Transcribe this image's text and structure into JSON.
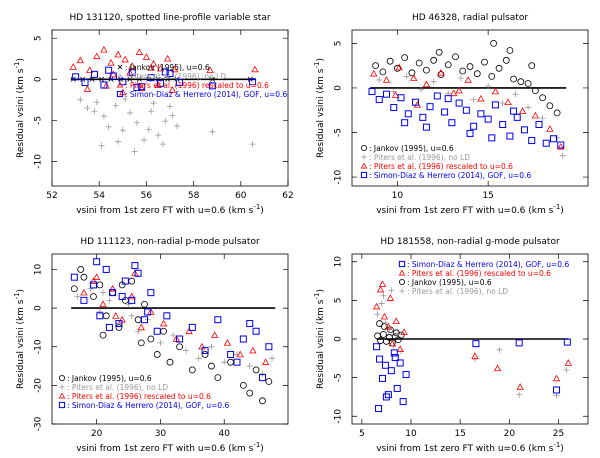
{
  "colors": {
    "jankov": "#000000",
    "pitersNoLD": "#999999",
    "pitersRescaled": "#ff0000",
    "simonDiaz": "#0000ee"
  },
  "chart_data": [
    {
      "type": "scatter",
      "title": "HD 131120, spotted line-profile variable star",
      "xlabel": "vsini from 1st zero FT with u=0.6",
      "xlabel_unit": "(km s",
      "xlabel_sup": "-1",
      "ylabel": "Residual vsini",
      "ylabel_unit": "(km s",
      "ylabel_sup": "-1",
      "xlim": [
        52,
        62
      ],
      "ylim": [
        -13,
        6
      ],
      "xticks": [
        52,
        54,
        56,
        58,
        60,
        62
      ],
      "yticks": [
        -10,
        -5,
        0,
        5
      ],
      "legend_pos": "middle-right",
      "legend": [
        {
          "marker": "x",
          "label": ": Jankov (1995), u=0.6"
        },
        {
          "marker": "plus",
          "label": ": Piters et al. (1996), no LD"
        },
        {
          "marker": "triangle",
          "label": ": Piters et al. (1996) rescaled to u=0.6"
        },
        {
          "marker": "square",
          "label": ": Simon-Diaz & Herrero (2014), GOF, u=0.6"
        }
      ],
      "zero_line": [
        52.8,
        60.6
      ],
      "series": [
        {
          "name": "Jankov (1995), u=0.6",
          "marker": "x",
          "x": [
            52.9,
            53.3,
            53.7,
            54.1,
            54.5,
            54.9,
            55.3,
            55.7,
            56.1,
            56.5,
            56.9,
            57.3,
            58.8,
            60.4
          ],
          "y": [
            0,
            0,
            0,
            0,
            0,
            0,
            0,
            0,
            0,
            0,
            0,
            0,
            0,
            0
          ]
        },
        {
          "name": "Piters et al. (1996), no LD",
          "marker": "plus",
          "x": [
            53.2,
            53.5,
            53.9,
            54.2,
            54.4,
            54.7,
            55.0,
            55.3,
            55.6,
            55.9,
            56.2,
            56.5,
            56.8,
            57.1,
            54.1,
            54.8,
            55.5,
            56.1,
            56.7,
            57.3,
            53.8,
            55.1,
            56.3,
            57.0,
            58.8,
            60.5
          ],
          "y": [
            -2.5,
            -3.5,
            -2.8,
            -4.5,
            -5.8,
            -3.2,
            -6.2,
            -4.1,
            -5.3,
            -7.4,
            -3.9,
            -6.8,
            -5.1,
            -4.4,
            -8.1,
            -7.6,
            -8.8,
            -6.1,
            -7.9,
            -5.7,
            -3.9,
            -2.4,
            -2.9,
            -3.3,
            -6.4,
            -7.9
          ]
        },
        {
          "name": "Piters et al. (1996) rescaled to u=0.6",
          "marker": "triangle",
          "x": [
            52.9,
            53.2,
            53.6,
            53.9,
            54.2,
            54.5,
            54.8,
            55.1,
            55.4,
            55.7,
            56.0,
            56.3,
            56.6,
            56.9,
            57.2,
            53.5,
            54.3,
            55.0,
            55.8,
            56.5,
            57.1,
            54.6,
            55.3,
            56.2,
            58.7,
            60.6
          ],
          "y": [
            1.5,
            2.3,
            1.1,
            2.8,
            3.6,
            2.0,
            3.0,
            2.4,
            1.6,
            3.3,
            2.7,
            1.9,
            1.3,
            2.5,
            1.2,
            -1.2,
            -0.8,
            -1.6,
            -1.1,
            -0.7,
            -1.3,
            0.6,
            0.8,
            1.4,
            1.1,
            1.2
          ]
        },
        {
          "name": "Simon-Diaz & Herrero (2014), GOF, u=0.6",
          "marker": "square",
          "x": [
            53.0,
            53.4,
            53.8,
            54.2,
            54.6,
            55.0,
            55.4,
            55.8,
            56.2,
            56.6,
            57.0,
            57.4,
            54.4,
            55.6,
            56.8,
            58.8,
            60.5
          ],
          "y": [
            0.3,
            -0.4,
            0.6,
            -0.7,
            0.4,
            -0.3,
            0.8,
            -0.9,
            0.2,
            -0.5,
            0.7,
            -0.4,
            1.1,
            -1.0,
            0.9,
            -0.8,
            -0.3
          ]
        }
      ]
    },
    {
      "type": "scatter",
      "title": "HD 46328, radial pulsator",
      "xlabel": "vsini from 1st zero FT with u=0.6",
      "xlabel_unit": "(km s",
      "xlabel_sup": "-1",
      "ylabel": "Residual vsini",
      "ylabel_unit": "(km s",
      "ylabel_sup": "-1",
      "xlim": [
        7.5,
        20.5
      ],
      "ylim": [
        -11,
        6.5
      ],
      "xticks": [
        10,
        15
      ],
      "yticks": [
        -10,
        -5,
        0,
        5
      ],
      "legend_pos": "bottom-left",
      "legend": [
        {
          "marker": "circle",
          "label": ": Jankov (1995), u=0.6"
        },
        {
          "marker": "plus",
          "label": ": Piters et al. (1996), no LD"
        },
        {
          "marker": "triangle",
          "label": ": Piters et al. (1996) rescaled to u=0.6"
        },
        {
          "marker": "square",
          "label": ": Simon-Diaz & Herrero (2014), GOF, u=0.6"
        }
      ],
      "zero_line": [
        8.5,
        19.3
      ],
      "series": [
        {
          "name": "Jankov (1995), u=0.6",
          "marker": "circle",
          "x": [
            8.8,
            9.2,
            9.6,
            10.0,
            10.4,
            10.8,
            11.2,
            11.6,
            12.0,
            12.4,
            12.8,
            13.2,
            13.6,
            14.0,
            14.4,
            14.8,
            15.2,
            15.6,
            16.0,
            16.4,
            16.8,
            17.2,
            17.6,
            18.0,
            18.4,
            18.8,
            15.3,
            12.3,
            16.2,
            17.4
          ],
          "y": [
            2.5,
            1.8,
            3.0,
            2.2,
            3.4,
            1.7,
            2.8,
            2.0,
            3.1,
            1.5,
            2.6,
            3.5,
            1.9,
            2.4,
            1.6,
            2.9,
            1.3,
            2.2,
            3.1,
            1.0,
            0.7,
            0.5,
            -0.3,
            -1.1,
            -2.0,
            -2.8,
            5.0,
            4.0,
            4.2,
            2.5
          ]
        },
        {
          "name": "Piters et al. (1996), no LD",
          "marker": "plus",
          "x": [
            9.0,
            9.8,
            10.5,
            11.3,
            12.0,
            12.8,
            13.5,
            14.2,
            15.0,
            15.8,
            16.5,
            17.2,
            18.0,
            18.8,
            19.1
          ],
          "y": [
            0.9,
            -0.4,
            1.3,
            -0.2,
            0.7,
            -0.6,
            1.1,
            -1.3,
            0.2,
            -1.7,
            -0.7,
            -2.2,
            -3.4,
            -5.6,
            -7.6
          ]
        },
        {
          "name": "Piters et al. (1996) rescaled to u=0.6",
          "marker": "triangle",
          "x": [
            8.7,
            9.4,
            10.1,
            10.9,
            11.6,
            12.4,
            13.1,
            13.9,
            14.6,
            15.4,
            16.1,
            16.9,
            17.6,
            18.4,
            19.0,
            9.9,
            11.1,
            13.4
          ],
          "y": [
            1.6,
            0.9,
            2.3,
            1.1,
            0.4,
            1.7,
            -0.6,
            0.9,
            -1.2,
            -0.4,
            -1.6,
            -2.6,
            -3.1,
            -4.6,
            -6.6,
            -0.8,
            -1.9,
            -0.3
          ]
        },
        {
          "name": "Simon-Diaz & Herrero (2014), GOF, u=0.6",
          "marker": "square",
          "x": [
            8.6,
            9.0,
            9.4,
            9.8,
            10.2,
            10.6,
            11.0,
            11.4,
            11.8,
            12.2,
            12.6,
            13.0,
            13.4,
            13.8,
            14.2,
            14.6,
            15.0,
            15.4,
            15.8,
            16.2,
            16.6,
            17.0,
            17.4,
            17.8,
            18.2,
            18.6,
            19.0,
            10.4,
            11.6,
            12.8,
            14.0,
            15.2,
            16.4
          ],
          "y": [
            -0.4,
            -1.3,
            -0.7,
            -2.2,
            -1.1,
            -2.9,
            -1.6,
            -3.3,
            -2.1,
            -0.9,
            -2.7,
            -3.9,
            -1.7,
            -2.5,
            -4.3,
            -2.9,
            -3.5,
            -1.9,
            -4.1,
            -5.4,
            -3.3,
            -4.7,
            -5.9,
            -4.1,
            -6.2,
            -5.7,
            -6.4,
            -3.9,
            -4.4,
            -1.2,
            -5.1,
            -5.6,
            -2.6
          ]
        }
      ]
    },
    {
      "type": "scatter",
      "title": "HD 111123, non-radial p-mode pulsator",
      "xlabel": "vsini from 1st zero FT with u=0.6",
      "xlabel_unit": "(km s",
      "xlabel_sup": "-1",
      "ylabel": "Residual vsini",
      "ylabel_unit": "(km s",
      "ylabel_sup": "-1",
      "xlim": [
        13,
        50
      ],
      "ylim": [
        -30,
        14
      ],
      "xticks": [
        20,
        30,
        40
      ],
      "yticks": [
        -30,
        -20,
        -10,
        0,
        10
      ],
      "legend_pos": "bottom-left",
      "legend": [
        {
          "marker": "circle",
          "label": ": Jankov (1995), u=0.6"
        },
        {
          "marker": "plus",
          "label": ": Piters et al. (1996), no LD"
        },
        {
          "marker": "triangle",
          "label": ": Piters et al. (1996) rescaled to u=0.6"
        },
        {
          "marker": "square",
          "label": ": Simon-Diaz & Herrero (2014), GOF, u=0.6"
        }
      ],
      "zero_line": [
        16,
        48
      ],
      "series": [
        {
          "name": "Jankov (1995), u=0.6",
          "marker": "circle",
          "x": [
            16.5,
            18.0,
            19.5,
            20.5,
            21.5,
            22.5,
            23.5,
            24.5,
            25.5,
            26.5,
            27.5,
            28.5,
            29.5,
            30.5,
            31.5,
            33.0,
            35.0,
            37.0,
            39.0,
            41.0,
            43.0,
            45.0,
            47.0,
            17.5,
            21.0,
            24.0,
            27.0,
            44.0,
            46.0,
            38.0
          ],
          "y": [
            5,
            8,
            3,
            6,
            -2,
            4,
            -5,
            2,
            7,
            -3,
            1,
            -8,
            -12,
            -6,
            -14,
            -10,
            -16,
            -12,
            -18,
            -14,
            -20,
            -16,
            -19,
            10,
            -7,
            6,
            -9,
            -22,
            -24,
            -15
          ]
        },
        {
          "name": "Piters et al. (1996), no LD",
          "marker": "plus",
          "x": [
            17.0,
            19.0,
            20.5,
            22.0,
            23.5,
            25.0,
            26.5,
            28.0,
            30.0,
            32.0,
            34.0,
            36.0,
            38.0,
            40.0,
            42.0,
            44.0,
            46.0,
            47.5,
            21.0,
            25.5
          ],
          "y": [
            3,
            5,
            -1,
            2,
            -4,
            1,
            -6,
            -3,
            -9,
            -7,
            -11,
            -13,
            -10,
            -14,
            -12,
            -15,
            -17,
            -13,
            4,
            -2
          ]
        },
        {
          "name": "Piters et al. (1996) rescaled to u=0.6",
          "marker": "triangle",
          "x": [
            18.0,
            19.5,
            21.0,
            22.5,
            24.0,
            25.5,
            27.0,
            28.5,
            30.5,
            32.5,
            34.5,
            36.5,
            38.5,
            40.5,
            42.5,
            44.5,
            46.5,
            20.0,
            23.0,
            26.0
          ],
          "y": [
            4,
            7,
            1,
            5,
            -3,
            3,
            -5,
            -1,
            -4,
            -8,
            -6,
            -10,
            -7,
            -9,
            -12,
            -11,
            -14,
            8,
            -2,
            9
          ]
        },
        {
          "name": "Simon-Diaz & Herrero (2014), GOF, u=0.6",
          "marker": "square",
          "x": [
            16.5,
            18.0,
            19.5,
            20.5,
            21.5,
            22.5,
            23.5,
            24.5,
            25.5,
            26.5,
            27.5,
            28.5,
            29.5,
            31.0,
            33.0,
            35.0,
            37.0,
            39.0,
            41.0,
            43.0,
            45.0,
            47.0,
            20.0,
            22.0,
            24.0,
            26.0,
            28.0,
            42.0,
            44.0,
            46.0
          ],
          "y": [
            8,
            2,
            6,
            -2,
            10,
            4,
            -4,
            7,
            2,
            9,
            -3,
            4,
            -6,
            -2,
            -8,
            -5,
            -11,
            -3,
            -12,
            -8,
            -6,
            -10,
            12,
            -5,
            3,
            11,
            -1,
            -14,
            -4,
            -18
          ]
        }
      ]
    },
    {
      "type": "scatter",
      "title": "HD 181558, non-radial g-mode pulsator",
      "xlabel": "vsini from 1st zero FT with u=0.6",
      "xlabel_unit": "(km s",
      "xlabel_sup": "-1",
      "ylabel": "Residual vsini",
      "ylabel_unit": "(km s",
      "ylabel_sup": "-1",
      "xlim": [
        4,
        28
      ],
      "ylim": [
        -11,
        11
      ],
      "xticks": [
        5,
        10,
        15,
        20,
        25
      ],
      "yticks": [
        -10,
        -5,
        0,
        5,
        10
      ],
      "legend_pos": "top-right",
      "legend": [
        {
          "marker": "square",
          "label": ": Simon-Diaz & Herrero (2014), GOF, u=0.6"
        },
        {
          "marker": "triangle",
          "label": ": Piters et al. (1996) rescaled to u=0.6"
        },
        {
          "marker": "circle",
          "label": ": Jankov (1995), u=0.6"
        },
        {
          "marker": "plus",
          "label": ": Piters et al. (1996), no LD"
        }
      ],
      "zero_line": [
        6.5,
        26
      ],
      "series": [
        {
          "name": "Jankov (1995), u=0.6",
          "marker": "circle",
          "x": [
            6.6,
            6.9,
            7.2,
            7.5,
            7.8,
            8.1,
            8.4,
            8.7,
            9.0,
            6.8,
            7.3,
            7.9,
            8.5
          ],
          "y": [
            0.4,
            -0.2,
            0.6,
            -0.3,
            0.2,
            -0.5,
            0.3,
            -0.1,
            0.5,
            2.0,
            1.6,
            1.2,
            0.8
          ]
        },
        {
          "name": "Piters et al. (1996), no LD",
          "marker": "plus",
          "x": [
            6.6,
            7.0,
            7.4,
            7.8,
            8.2,
            8.6,
            9.0,
            16.5,
            19.0,
            21.0,
            24.8,
            25.8,
            7.2,
            8.0
          ],
          "y": [
            3.2,
            4.6,
            2.1,
            1.2,
            -0.9,
            0.6,
            -1.6,
            -2.6,
            -1.4,
            -7.2,
            -7.3,
            -4.0,
            5.6,
            6.3
          ]
        },
        {
          "name": "Piters et al. (1996) rescaled to u=0.6",
          "marker": "triangle",
          "x": [
            6.5,
            6.9,
            7.3,
            7.7,
            8.1,
            8.5,
            8.9,
            9.3,
            16.5,
            18.8,
            21.1,
            24.8,
            26.0,
            7.1,
            7.9
          ],
          "y": [
            4.2,
            6.4,
            2.9,
            1.6,
            -0.6,
            2.3,
            -1.3,
            0.9,
            -2.2,
            -3.8,
            -6.2,
            -5.1,
            -3.1,
            7.1,
            5.3
          ]
        },
        {
          "name": "Simon-Diaz & Herrero (2014), GOF, u=0.6",
          "marker": "square",
          "x": [
            6.5,
            6.8,
            7.1,
            7.4,
            7.7,
            8.0,
            8.3,
            8.6,
            8.9,
            9.2,
            9.5,
            6.7,
            7.5,
            8.4,
            16.6,
            21.0,
            24.8,
            25.9
          ],
          "y": [
            -1.0,
            -2.6,
            -5.1,
            -3.4,
            -7.2,
            -4.1,
            -1.8,
            -6.4,
            -3.1,
            -8.1,
            -4.6,
            -9.0,
            -7.5,
            -2.4,
            -0.6,
            -0.5,
            -6.6,
            -0.4
          ]
        }
      ]
    }
  ]
}
